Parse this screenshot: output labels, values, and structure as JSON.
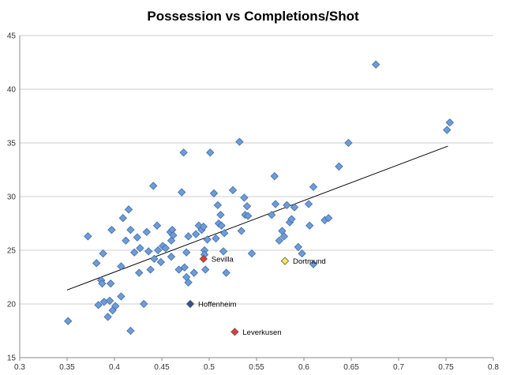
{
  "chart_data": {
    "type": "scatter",
    "title": "Possession vs Completions/Shot",
    "xlabel": "",
    "ylabel": "",
    "xlim": [
      0.3,
      0.8
    ],
    "ylim": [
      15,
      45
    ],
    "x_ticks": [
      0.3,
      0.35,
      0.4,
      0.45,
      0.5,
      0.55,
      0.6,
      0.65,
      0.7,
      0.75,
      0.8
    ],
    "y_ticks": [
      15,
      20,
      25,
      30,
      35,
      40,
      45
    ],
    "x_tick_labels": [
      "0.3",
      "0.35",
      "0.4",
      "0.45",
      "0.5",
      "0.55",
      "0.6",
      "0.65",
      "0.7",
      "0.75",
      "0.8"
    ],
    "y_tick_labels": [
      "15",
      "20",
      "25",
      "30",
      "35",
      "40",
      "45"
    ],
    "grid": "horizontal",
    "legend": "none",
    "colors": {
      "default": "#6f9bd6",
      "default_edge": "#3f6eaa",
      "trendline": "#000000",
      "gridline": "#bdbdbd"
    },
    "series": [
      {
        "marker": "diamond",
        "points": [
          [
            0.351,
            18.4
          ],
          [
            0.372,
            26.3
          ],
          [
            0.381,
            23.8
          ],
          [
            0.383,
            19.9
          ],
          [
            0.386,
            22.2
          ],
          [
            0.387,
            21.9
          ],
          [
            0.388,
            24.7
          ],
          [
            0.389,
            20.2
          ],
          [
            0.393,
            18.8
          ],
          [
            0.395,
            20.3
          ],
          [
            0.396,
            21.9
          ],
          [
            0.397,
            26.9
          ],
          [
            0.398,
            19.4
          ],
          [
            0.401,
            19.8
          ],
          [
            0.407,
            23.5
          ],
          [
            0.407,
            20.7
          ],
          [
            0.409,
            28.0
          ],
          [
            0.412,
            25.9
          ],
          [
            0.415,
            28.8
          ],
          [
            0.417,
            17.5
          ],
          [
            0.417,
            26.9
          ],
          [
            0.421,
            24.8
          ],
          [
            0.424,
            26.2
          ],
          [
            0.426,
            22.9
          ],
          [
            0.427,
            25.2
          ],
          [
            0.431,
            20.0
          ],
          [
            0.434,
            26.7
          ],
          [
            0.436,
            24.9
          ],
          [
            0.438,
            23.2
          ],
          [
            0.441,
            31.0
          ],
          [
            0.442,
            24.2
          ],
          [
            0.445,
            27.3
          ],
          [
            0.446,
            25.0
          ],
          [
            0.449,
            23.9
          ],
          [
            0.451,
            25.4
          ],
          [
            0.454,
            25.2
          ],
          [
            0.459,
            26.7
          ],
          [
            0.46,
            25.9
          ],
          [
            0.46,
            24.4
          ],
          [
            0.461,
            26.9
          ],
          [
            0.462,
            26.4
          ],
          [
            0.468,
            23.2
          ],
          [
            0.471,
            30.4
          ],
          [
            0.473,
            34.1
          ],
          [
            0.474,
            23.4
          ],
          [
            0.476,
            24.8
          ],
          [
            0.476,
            22.5
          ],
          [
            0.478,
            26.3
          ],
          [
            0.478,
            22.0
          ],
          [
            0.484,
            22.9
          ],
          [
            0.486,
            26.5
          ],
          [
            0.489,
            27.3
          ],
          [
            0.492,
            26.9
          ],
          [
            0.494,
            27.2
          ],
          [
            0.495,
            25.0
          ],
          [
            0.495,
            24.6
          ],
          [
            0.496,
            23.2
          ],
          [
            0.498,
            26.0
          ],
          [
            0.501,
            34.1
          ],
          [
            0.505,
            30.3
          ],
          [
            0.507,
            26.1
          ],
          [
            0.509,
            29.2
          ],
          [
            0.51,
            27.5
          ],
          [
            0.512,
            28.3
          ],
          [
            0.513,
            27.3
          ],
          [
            0.515,
            24.9
          ],
          [
            0.516,
            26.6
          ],
          [
            0.518,
            22.9
          ],
          [
            0.525,
            30.6
          ],
          [
            0.532,
            35.1
          ],
          [
            0.534,
            26.8
          ],
          [
            0.537,
            29.9
          ],
          [
            0.538,
            28.3
          ],
          [
            0.54,
            29.1
          ],
          [
            0.541,
            28.2
          ],
          [
            0.545,
            24.7
          ],
          [
            0.566,
            28.3
          ],
          [
            0.569,
            31.9
          ],
          [
            0.57,
            29.3
          ],
          [
            0.574,
            25.9
          ],
          [
            0.577,
            26.8
          ],
          [
            0.579,
            26.3
          ],
          [
            0.582,
            29.2
          ],
          [
            0.585,
            27.6
          ],
          [
            0.587,
            27.9
          ],
          [
            0.59,
            29.0
          ],
          [
            0.594,
            25.3
          ],
          [
            0.598,
            24.7
          ],
          [
            0.605,
            29.3
          ],
          [
            0.606,
            27.3
          ],
          [
            0.61,
            30.9
          ],
          [
            0.61,
            23.7
          ],
          [
            0.622,
            27.8
          ],
          [
            0.626,
            28.0
          ],
          [
            0.637,
            32.8
          ],
          [
            0.647,
            35.0
          ],
          [
            0.676,
            42.3
          ],
          [
            0.751,
            36.2
          ],
          [
            0.754,
            36.9
          ]
        ]
      }
    ],
    "highlighted": [
      {
        "label": "Sevilla",
        "x": 0.494,
        "y": 24.2,
        "color": "#e23b3b"
      },
      {
        "label": "Dortmund",
        "x": 0.58,
        "y": 24.0,
        "color": "#f1ec53"
      },
      {
        "label": "Hoffenheim",
        "x": 0.48,
        "y": 20.0,
        "color": "#2f5393"
      },
      {
        "label": "Leverkusen",
        "x": 0.527,
        "y": 17.4,
        "color": "#e23b3b"
      }
    ],
    "trendline": {
      "x": [
        0.35,
        0.752
      ],
      "y": [
        21.3,
        34.7
      ]
    }
  }
}
